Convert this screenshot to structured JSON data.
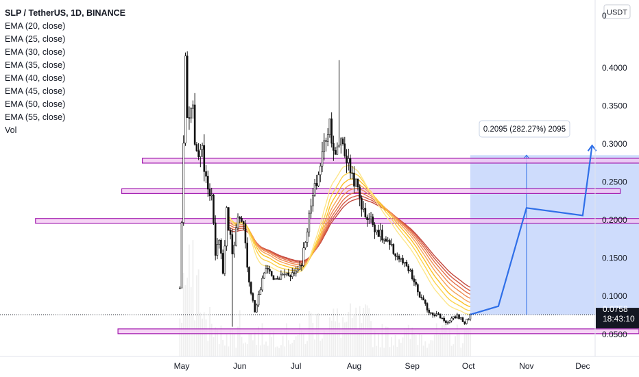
{
  "header": {
    "title": "SLP / TetherUS, 1D, BINANCE",
    "indicators": [
      "EMA (20, close)",
      "EMA (25, close)",
      "EMA (30, close)",
      "EMA (35, close)",
      "EMA (40, close)",
      "EMA (45, close)",
      "EMA (50, close)",
      "EMA (55, close)",
      "Vol"
    ]
  },
  "currency_badge": "USDT",
  "price_axis_top_partial": "0",
  "last_price": {
    "value": "0.0758",
    "countdown": "18:43:10",
    "color": "#131722"
  },
  "measure_label": "0.2095 (282.27%) 2095",
  "chart_data": {
    "type": "candlestick",
    "title": "SLP / TetherUS, 1D, BINANCE",
    "x_axis": {
      "tick_labels": [
        "May",
        "Jun",
        "Jul",
        "Aug",
        "Sep",
        "Oct",
        "Nov",
        "Dec"
      ],
      "tick_dates": [
        "2021-05-01",
        "2021-06-01",
        "2021-07-01",
        "2021-08-01",
        "2021-09-01",
        "2021-10-01",
        "2021-11-01",
        "2021-12-01"
      ]
    },
    "y_axis": {
      "tick_labels": [
        "0.4000",
        "0.3500",
        "0.3000",
        "0.2500",
        "0.2000",
        "0.1500",
        "0.1000",
        "0.0500"
      ],
      "range": [
        0.003,
        0.48
      ]
    },
    "price_path": [
      [
        "2021-04-30",
        0.11
      ],
      [
        "2021-05-01",
        0.2
      ],
      [
        "2021-05-03",
        0.4
      ],
      [
        "2021-05-04",
        0.33
      ],
      [
        "2021-05-07",
        0.34
      ],
      [
        "2021-05-09",
        0.28
      ],
      [
        "2021-05-11",
        0.3
      ],
      [
        "2021-05-14",
        0.26
      ],
      [
        "2021-05-17",
        0.23
      ],
      [
        "2021-05-19",
        0.15
      ],
      [
        "2021-05-21",
        0.18
      ],
      [
        "2021-05-23",
        0.13
      ],
      [
        "2021-05-25",
        0.21
      ],
      [
        "2021-05-28",
        0.16
      ],
      [
        "2021-05-31",
        0.2
      ],
      [
        "2021-06-03",
        0.19
      ],
      [
        "2021-06-06",
        0.12
      ],
      [
        "2021-06-09",
        0.08
      ],
      [
        "2021-06-12",
        0.11
      ],
      [
        "2021-06-15",
        0.14
      ],
      [
        "2021-06-20",
        0.12
      ],
      [
        "2021-06-25",
        0.13
      ],
      [
        "2021-06-30",
        0.13
      ],
      [
        "2021-07-04",
        0.145
      ],
      [
        "2021-07-07",
        0.19
      ],
      [
        "2021-07-10",
        0.23
      ],
      [
        "2021-07-13",
        0.26
      ],
      [
        "2021-07-16",
        0.3
      ],
      [
        "2021-07-19",
        0.33
      ],
      [
        "2021-07-22",
        0.28
      ],
      [
        "2021-07-25",
        0.31
      ],
      [
        "2021-07-28",
        0.28
      ],
      [
        "2021-07-31",
        0.26
      ],
      [
        "2021-08-03",
        0.24
      ],
      [
        "2021-08-06",
        0.21
      ],
      [
        "2021-08-10",
        0.2
      ],
      [
        "2021-08-15",
        0.18
      ],
      [
        "2021-08-20",
        0.165
      ],
      [
        "2021-08-25",
        0.15
      ],
      [
        "2021-08-31",
        0.13
      ],
      [
        "2021-09-05",
        0.1
      ],
      [
        "2021-09-10",
        0.08
      ],
      [
        "2021-09-15",
        0.075
      ],
      [
        "2021-09-20",
        0.065
      ],
      [
        "2021-09-25",
        0.075
      ],
      [
        "2021-09-29",
        0.065
      ],
      [
        "2021-10-02",
        0.0758
      ]
    ],
    "ema_ribbon": {
      "periods": [
        20,
        25,
        30,
        35,
        40,
        45,
        50,
        55
      ],
      "colors": [
        "#fde68a",
        "#fcd34d",
        "#fbbf24",
        "#f6a25a",
        "#ef8a50",
        "#e3704a",
        "#d45a45",
        "#c44a40"
      ],
      "start_date": "2021-05-25"
    },
    "volume": {
      "axis_range": [
        0,
        18
      ],
      "note": "volume histogram at bottom"
    },
    "horizontal_levels": [
      {
        "name": "resistance-1",
        "value": 0.278,
        "from": "2021-04-10",
        "to": "2022-01-10"
      },
      {
        "name": "resistance-2",
        "value": 0.238,
        "from": "2021-03-30",
        "to": "2021-12-21"
      },
      {
        "name": "resistance-3",
        "value": 0.199,
        "from": "2021-02-12",
        "to": "2022-01-11"
      },
      {
        "name": "support-1",
        "value": 0.054,
        "from": "2021-03-28",
        "to": "2021-12-31"
      }
    ],
    "measure_box": {
      "x_from": "2021-10-02",
      "x_to": "2022-01-11",
      "y_from": 0.0758,
      "y_to": 0.2853,
      "color": "#c5d6fb"
    },
    "projection_path": [
      [
        "2021-10-02",
        0.076
      ],
      [
        "2021-10-17",
        0.087
      ],
      [
        "2021-11-01",
        0.216
      ],
      [
        "2021-12-01",
        0.206
      ],
      [
        "2021-12-06",
        0.298
      ]
    ],
    "projection_color": "#2f6fe8",
    "last_value": 0.0758
  }
}
